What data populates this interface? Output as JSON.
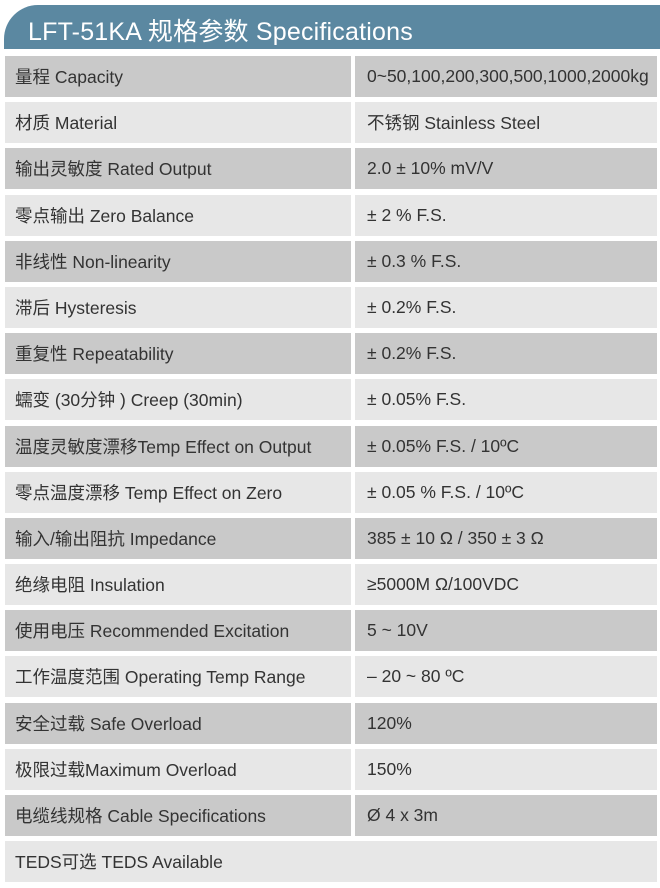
{
  "title": "LFT-51KA 规格参数 Specifications",
  "colors": {
    "header": "#5b88a1",
    "row_dark": "#c9c9c9",
    "row_light": "#e7e7e7"
  },
  "rows": [
    {
      "label": "量程 Capacity",
      "value": "0~50,100,200,300,500,1000,2000kg"
    },
    {
      "label": "材质 Material",
      "value": "不锈钢 Stainless Steel"
    },
    {
      "label": "输出灵敏度 Rated Output",
      "value": "2.0  ± 10% mV/V"
    },
    {
      "label": "零点输出  Zero Balance",
      "value": "±  2 % F.S."
    },
    {
      "label": "非线性 Non-linearity",
      "value": "± 0.3 % F.S."
    },
    {
      "label": "滞后 Hysteresis",
      "value": "± 0.2% F.S."
    },
    {
      "label": "重复性 Repeatability",
      "value": "± 0.2% F.S."
    },
    {
      "label": "蠕变 (30分钟 ) Creep (30min)",
      "value": "± 0.05% F.S."
    },
    {
      "label": "温度灵敏度漂移Temp Effect on Output",
      "value": "± 0.05% F.S. / 10ºC"
    },
    {
      "label": "零点温度漂移 Temp Effect on Zero",
      "value": "± 0.05 % F.S. / 10ºC"
    },
    {
      "label": "输入/输出阻抗 Impedance",
      "value": "385 ± 10 Ω  / 350 ± 3 Ω"
    },
    {
      "label": "绝缘电阻  Insulation",
      "value": "≥5000M Ω/100VDC"
    },
    {
      "label": "使用电压 Recommended Excitation",
      "value": "5 ~ 10V"
    },
    {
      "label": "工作温度范围 Operating Temp  Range",
      "value": "– 20 ~ 80 ºC"
    },
    {
      "label": "安全过载 Safe Overload",
      "value": "120%"
    },
    {
      "label": "极限过载Maximum Overload",
      "value": "150%"
    },
    {
      "label": "电缆线规格 Cable Specifications",
      "value": "Ø 4 x 3m"
    }
  ],
  "footer_row": "TEDS可选 TEDS Available"
}
